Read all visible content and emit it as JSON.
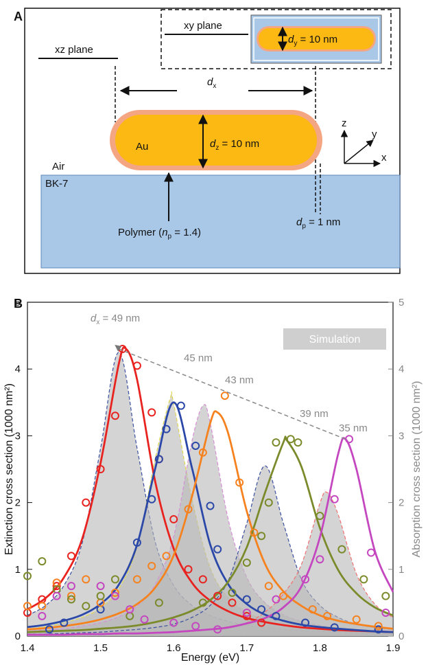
{
  "panel_a": {
    "label": "A",
    "xy_plane": "xy plane",
    "xz_plane": "xz plane",
    "dy_label": [
      "d",
      "y",
      " = 10 nm"
    ],
    "dx_label": [
      "d",
      "x"
    ],
    "dz_label": [
      "d",
      "z",
      " = 10 nm"
    ],
    "au": "Au",
    "air": "Air",
    "substrate": "BK-7",
    "polymer_label": [
      "Polymer (",
      "n",
      "p",
      " = 1.4)"
    ],
    "dp_label": [
      "d",
      "p",
      " = 1 nm"
    ],
    "axes": [
      "z",
      "y",
      "x"
    ]
  },
  "panel_b_label": "B",
  "chart_data": {
    "type": "line",
    "xlabel": "Energy (eV)",
    "ylabel": "Extinction cross section (1000 nm²)",
    "y2label": "Absorption cross section (1000 nm²)",
    "xlim": [
      1.4,
      1.9
    ],
    "ylim": [
      0,
      5
    ],
    "y2lim": [
      0,
      5
    ],
    "xticks": [
      1.4,
      1.5,
      1.6,
      1.7,
      1.8,
      1.9
    ],
    "yticks": [
      0,
      1,
      2,
      3,
      4,
      5
    ],
    "y2ticks": [
      0,
      1,
      2,
      3,
      4,
      5
    ],
    "annotations": {
      "dx": [
        "d",
        "x",
        " = 49 nm"
      ],
      "labels": [
        "45 nm",
        "43 nm",
        "39 nm",
        "35 nm"
      ],
      "box": "Simulation"
    },
    "trend_line": {
      "x": [
        1.525,
        1.835
      ],
      "values": [
        4.3,
        2.95
      ]
    },
    "series": [
      {
        "color": "#e8231f",
        "x": [
          1.4,
          1.425,
          1.45,
          1.475,
          1.5,
          1.525,
          1.535,
          1.55,
          1.575,
          1.6,
          1.625,
          1.65,
          1.675,
          1.7,
          1.725,
          1.75,
          1.775,
          1.8,
          1.825,
          1.85,
          1.875,
          1.9
        ],
        "values": [
          0.4,
          0.57,
          0.88,
          1.46,
          2.59,
          4.08,
          4.3,
          3.84,
          2.3,
          1.31,
          0.8,
          0.53,
          0.37,
          0.27,
          0.21,
          0.165,
          0.13,
          0.11,
          0.09,
          0.08,
          0.07,
          0.06
        ],
        "markers": {
          "x": [
            1.4,
            1.42,
            1.44,
            1.46,
            1.48,
            1.5,
            1.52,
            1.53,
            1.55,
            1.57,
            1.58,
            1.6,
            1.62,
            1.64,
            1.66,
            1.68,
            1.7,
            1.72
          ],
          "values": [
            0.35,
            0.55,
            0.75,
            1.2,
            2.0,
            2.5,
            3.3,
            4.3,
            4.05,
            3.35,
            2.65,
            1.75,
            1.0,
            0.85,
            0.6,
            0.5,
            0.3,
            0.2
          ]
        }
      },
      {
        "color": "#2b48a8",
        "x": [
          1.4,
          1.425,
          1.45,
          1.475,
          1.5,
          1.525,
          1.55,
          1.575,
          1.6,
          1.625,
          1.65,
          1.675,
          1.7,
          1.725,
          1.75,
          1.775,
          1.8,
          1.825,
          1.85,
          1.875,
          1.9
        ],
        "values": [
          0.135,
          0.17,
          0.23,
          0.32,
          0.48,
          0.77,
          1.37,
          2.52,
          3.5,
          2.52,
          1.37,
          0.77,
          0.48,
          0.32,
          0.23,
          0.17,
          0.135,
          0.11,
          0.09,
          0.07,
          0.06
        ],
        "markers": {
          "x": [
            1.43,
            1.45,
            1.5,
            1.55,
            1.57,
            1.58,
            1.59,
            1.61,
            1.63,
            1.65,
            1.66,
            1.7,
            1.72,
            1.74,
            1.78,
            1.82,
            1.88
          ],
          "values": [
            0.1,
            0.2,
            0.4,
            1.4,
            2.05,
            2.65,
            3.1,
            3.45,
            2.85,
            1.95,
            1.3,
            0.55,
            0.4,
            0.3,
            0.2,
            0.13,
            0.1
          ]
        }
      },
      {
        "color": "#f5821f",
        "x": [
          1.4,
          1.425,
          1.45,
          1.475,
          1.5,
          1.525,
          1.55,
          1.575,
          1.6,
          1.625,
          1.65,
          1.66,
          1.675,
          1.7,
          1.725,
          1.75,
          1.775,
          1.8,
          1.825,
          1.85,
          1.875,
          1.9
        ],
        "values": [
          0.1,
          0.12,
          0.15,
          0.19,
          0.25,
          0.34,
          0.48,
          0.73,
          1.21,
          2.09,
          3.19,
          3.35,
          3.02,
          1.87,
          1.08,
          0.67,
          0.45,
          0.31,
          0.23,
          0.18,
          0.14,
          0.11
        ],
        "markers": {
          "x": [
            1.4,
            1.42,
            1.44,
            1.46,
            1.48,
            1.5,
            1.52,
            1.55,
            1.57,
            1.59,
            1.62,
            1.64,
            1.67,
            1.69,
            1.71,
            1.73,
            1.75,
            1.79,
            1.81,
            1.85,
            1.88
          ],
          "values": [
            0.45,
            0.45,
            0.8,
            0.6,
            0.85,
            0.5,
            0.65,
            0.85,
            1.05,
            1.2,
            1.9,
            2.75,
            3.6,
            2.3,
            1.55,
            0.75,
            0.6,
            0.4,
            0.3,
            0.25,
            0.15
          ]
        }
      },
      {
        "color": "#7b8a2a",
        "x": [
          1.4,
          1.425,
          1.45,
          1.475,
          1.5,
          1.525,
          1.55,
          1.575,
          1.6,
          1.625,
          1.65,
          1.675,
          1.7,
          1.725,
          1.75,
          1.755,
          1.775,
          1.8,
          1.825,
          1.85,
          1.875,
          1.9
        ],
        "values": [
          0.06,
          0.07,
          0.08,
          0.09,
          0.11,
          0.13,
          0.16,
          0.21,
          0.28,
          0.38,
          0.54,
          0.82,
          1.33,
          2.15,
          2.9,
          2.93,
          2.53,
          1.62,
          0.99,
          0.64,
          0.43,
          0.31
        ],
        "markers": {
          "x": [
            1.4,
            1.42,
            1.44,
            1.46,
            1.48,
            1.5,
            1.52,
            1.54,
            1.58,
            1.64,
            1.68,
            1.7,
            1.72,
            1.73,
            1.74,
            1.76,
            1.77,
            1.8,
            1.83,
            1.86,
            1.89
          ],
          "values": [
            0.9,
            1.12,
            0.7,
            0.55,
            0.45,
            0.6,
            0.85,
            0.3,
            0.5,
            0.5,
            0.65,
            1.1,
            1.5,
            2.0,
            2.9,
            2.95,
            2.9,
            1.8,
            1.3,
            0.85,
            0.6
          ]
        }
      },
      {
        "color": "#c447c0",
        "x": [
          1.4,
          1.425,
          1.45,
          1.475,
          1.5,
          1.525,
          1.55,
          1.575,
          1.6,
          1.625,
          1.65,
          1.675,
          1.7,
          1.725,
          1.75,
          1.775,
          1.8,
          1.825,
          1.835,
          1.85,
          1.875,
          1.9
        ],
        "values": [
          0.02,
          0.02,
          0.02,
          0.03,
          0.03,
          0.04,
          0.04,
          0.05,
          0.06,
          0.08,
          0.1,
          0.13,
          0.19,
          0.27,
          0.43,
          0.75,
          1.48,
          2.73,
          2.95,
          2.5,
          1.28,
          0.66
        ],
        "markers": {
          "x": [
            1.42,
            1.44,
            1.46,
            1.5,
            1.52,
            1.54,
            1.56,
            1.6,
            1.63,
            1.66,
            1.7,
            1.74,
            1.78,
            1.8,
            1.82,
            1.84,
            1.87,
            1.89
          ],
          "values": [
            0.3,
            0.6,
            0.75,
            0.75,
            0.6,
            0.4,
            0.25,
            0.2,
            0.15,
            0.1,
            0.35,
            0.55,
            0.85,
            1.15,
            2.05,
            2.95,
            1.25,
            0.35
          ]
        }
      },
      {
        "color": "#3a4fa0",
        "axis": "y2",
        "dashed": true,
        "x": [
          1.4,
          1.425,
          1.45,
          1.475,
          1.5,
          1.525,
          1.55,
          1.575,
          1.6,
          1.625,
          1.65,
          1.675,
          1.7,
          1.725,
          1.75,
          1.775,
          1.8,
          1.825,
          1.85,
          1.875,
          1.9
        ],
        "values": [
          0.31,
          0.46,
          0.76,
          1.4,
          2.81,
          4.25,
          2.81,
          1.4,
          0.76,
          0.46,
          0.31,
          0.22,
          0.16,
          0.13,
          0.1,
          0.08,
          0.07,
          0.06,
          0.05,
          0.04,
          0.04
        ]
      },
      {
        "color": "#e0d850",
        "axis": "y2",
        "dashed": true,
        "x": [
          1.4,
          1.425,
          1.45,
          1.475,
          1.5,
          1.525,
          1.55,
          1.575,
          1.595,
          1.6,
          1.625,
          1.65,
          1.675,
          1.7,
          1.725,
          1.75,
          1.775,
          1.8,
          1.825,
          1.85,
          1.875,
          1.9
        ],
        "values": [
          0.11,
          0.14,
          0.2,
          0.28,
          0.42,
          0.71,
          1.34,
          2.67,
          3.55,
          3.48,
          2.05,
          1.02,
          0.57,
          0.36,
          0.24,
          0.17,
          0.13,
          0.1,
          0.08,
          0.07,
          0.06,
          0.05
        ]
      },
      {
        "color": "#d68fd6",
        "axis": "y2",
        "dashed": true,
        "x": [
          1.4,
          1.425,
          1.45,
          1.475,
          1.5,
          1.525,
          1.55,
          1.575,
          1.6,
          1.625,
          1.64,
          1.65,
          1.675,
          1.7,
          1.725,
          1.75,
          1.775,
          1.8,
          1.825,
          1.85,
          1.875,
          1.9
        ],
        "values": [
          0.07,
          0.09,
          0.11,
          0.15,
          0.2,
          0.29,
          0.45,
          0.78,
          1.49,
          2.92,
          3.45,
          3.19,
          1.73,
          0.88,
          0.5,
          0.32,
          0.22,
          0.16,
          0.12,
          0.09,
          0.07,
          0.06
        ]
      },
      {
        "color": "#3a4fa0",
        "axis": "y2",
        "dashed": true,
        "x": [
          1.4,
          1.425,
          1.45,
          1.475,
          1.5,
          1.525,
          1.55,
          1.575,
          1.6,
          1.625,
          1.65,
          1.675,
          1.7,
          1.725,
          1.75,
          1.775,
          1.8,
          1.825,
          1.85,
          1.875,
          1.9
        ],
        "values": [
          0.03,
          0.03,
          0.04,
          0.05,
          0.06,
          0.08,
          0.1,
          0.13,
          0.18,
          0.28,
          0.46,
          0.84,
          1.69,
          2.55,
          1.69,
          0.84,
          0.46,
          0.28,
          0.18,
          0.13,
          0.1
        ]
      },
      {
        "color": "#f07070",
        "axis": "y2",
        "dashed": true,
        "x": [
          1.4,
          1.425,
          1.45,
          1.475,
          1.5,
          1.525,
          1.55,
          1.575,
          1.6,
          1.625,
          1.65,
          1.675,
          1.7,
          1.725,
          1.75,
          1.775,
          1.8,
          1.81,
          1.825,
          1.85,
          1.875,
          1.9
        ],
        "values": [
          0.02,
          0.02,
          0.02,
          0.02,
          0.03,
          0.03,
          0.04,
          0.05,
          0.06,
          0.07,
          0.1,
          0.14,
          0.2,
          0.36,
          0.63,
          1.08,
          1.99,
          2.15,
          1.82,
          0.93,
          0.48,
          0.28
        ]
      }
    ]
  }
}
